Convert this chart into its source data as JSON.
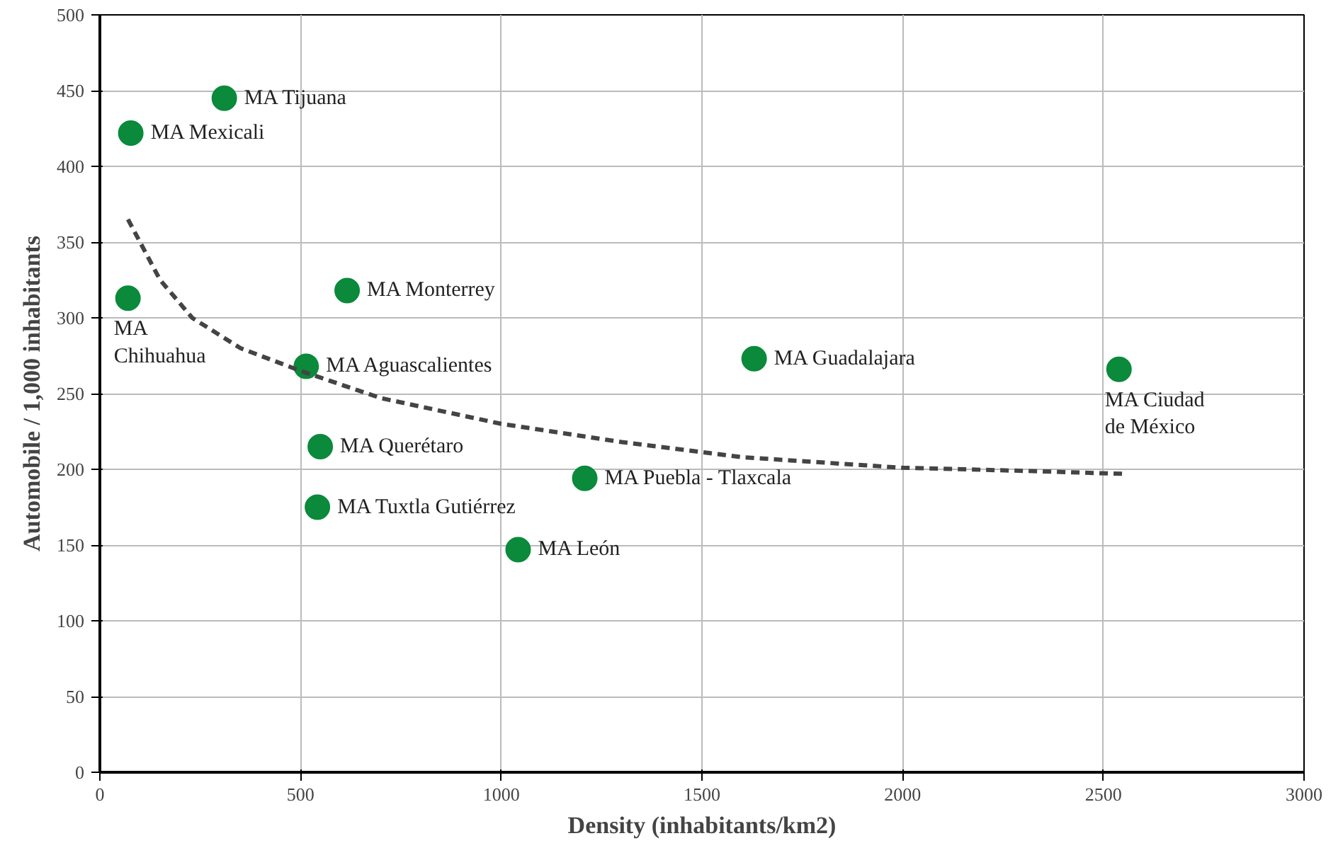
{
  "chart_data": {
    "type": "scatter",
    "xlabel": "Density (inhabitants/km2)",
    "ylabel": "Automobile / 1,000 inhabitants",
    "xlim": [
      0,
      3000
    ],
    "xticks": [
      0,
      500,
      1000,
      1500,
      2000,
      2500,
      3000
    ],
    "ylim": [
      0,
      500
    ],
    "yticks": [
      0,
      50,
      100,
      150,
      200,
      250,
      300,
      350,
      400,
      450,
      500
    ],
    "grid": true,
    "marker": "circle",
    "series": [
      {
        "color": "#0a8a3a",
        "x": [
          310,
          77,
          70,
          616,
          514,
          549,
          542,
          1042,
          1208,
          1630,
          2539
        ],
        "values": [
          445,
          422,
          313,
          318,
          268,
          215,
          175,
          147,
          194,
          273,
          266
        ]
      },
      {
        "type": "line",
        "color": "#444444",
        "line_style": "dashed",
        "marker": "none",
        "x": [
          70,
          150,
          230,
          350,
          500,
          700,
          1000,
          1300,
          1600,
          2000,
          2300,
          2550
        ],
        "values": [
          365,
          325,
          300,
          280,
          265,
          247,
          230,
          218,
          208,
          201,
          199,
          197
        ]
      }
    ],
    "annotations": [
      {
        "text": "MA Tijuana",
        "x": 310,
        "y": 445
      },
      {
        "text": "MA Mexicali",
        "x": 77,
        "y": 422
      },
      {
        "text": "MA\nChihuahua",
        "x": 70,
        "y": 313
      },
      {
        "text": "MA Monterrey",
        "x": 616,
        "y": 318
      },
      {
        "text": "MA Aguascalientes",
        "x": 514,
        "y": 268
      },
      {
        "text": "MA Querétaro",
        "x": 549,
        "y": 215
      },
      {
        "text": "MA Tuxtla Gutiérrez",
        "x": 542,
        "y": 175
      },
      {
        "text": "MA León",
        "x": 1042,
        "y": 147
      },
      {
        "text": "MA Puebla - Tlaxcala",
        "x": 1208,
        "y": 194
      },
      {
        "text": "MA Guadalajara",
        "x": 1630,
        "y": 273
      },
      {
        "text": "MA Ciudad\nde México",
        "x": 2539,
        "y": 266
      }
    ]
  }
}
